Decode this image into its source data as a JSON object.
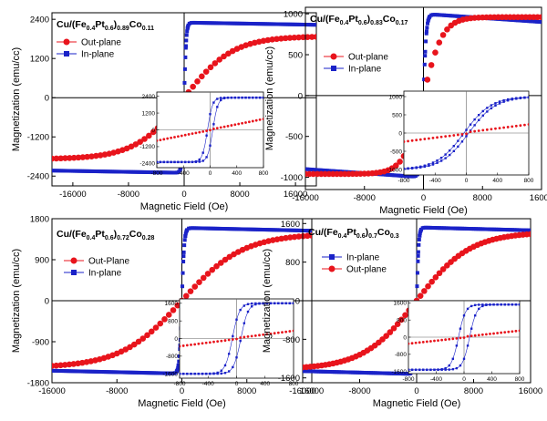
{
  "colors": {
    "out_plane": "#e8141c",
    "in_plane": "#1a22c8",
    "axis": "#000000"
  },
  "chart_data": [
    {
      "type": "scatter",
      "title_parts": {
        "main": "Cu/(Fe",
        "s1": "0.4",
        "m1": "Pt",
        "s2": "0.6",
        "m2": ")",
        "s3": "0.89",
        "m3": "Co",
        "s4": "0.11"
      },
      "xlabel": "Magnetic Field (Oe)",
      "ylabel": "Magnetization (emu/cc)",
      "xlim": [
        -19000,
        19000
      ],
      "ylim": [
        -2700,
        2600
      ],
      "xticks": [
        "-16000",
        "-8000",
        "0",
        "8000",
        "16000"
      ],
      "xtick_values": [
        -16000,
        -8000,
        0,
        8000,
        16000
      ],
      "yticks": [
        "-2400",
        "-1200",
        "0",
        "1200",
        "2400"
      ],
      "ytick_values": [
        -2400,
        -1200,
        0,
        1200,
        2400
      ],
      "legend": [
        "Out-plane",
        "In-plane"
      ],
      "legend_order": [
        "out",
        "in"
      ],
      "ms_in": 2300,
      "ms_out": 1880,
      "hk_out": 7000,
      "sat_in": 300,
      "tilt_in": 0.03,
      "coercivity": 0,
      "inset": {
        "xlim": [
          -800,
          800
        ],
        "ylim": [
          -2700,
          2700
        ],
        "xticks": [
          "-800",
          "-400",
          "0",
          "400",
          "800"
        ],
        "xtick_values": [
          -800,
          -400,
          0,
          400,
          800
        ],
        "yticks": [
          "-2400",
          "-1200",
          "0",
          "1200",
          "2400"
        ],
        "ytick_values": [
          -2400,
          -1200,
          0,
          1200,
          2400
        ],
        "hc_in": 40,
        "sat_in": 150,
        "slope_out": 0.8
      }
    },
    {
      "type": "scatter",
      "title_parts": {
        "main": "Cu/(Fe",
        "s1": "0.4",
        "m1": "Pt",
        "s2": "0.6",
        "m2": ")",
        "s3": "0.83",
        "m3": "Co",
        "s4": "0.17"
      },
      "xlabel": "Magnetic Field (Oe)",
      "ylabel": "Magnetization (emu/cc)",
      "xlim": [
        -16000,
        16000
      ],
      "ylim": [
        -1150,
        1080
      ],
      "xticks": [
        "-16000",
        "-8000",
        "0",
        "8000",
        "16000"
      ],
      "xtick_values": [
        -16000,
        -8000,
        0,
        8000,
        16000
      ],
      "yticks": [
        "-1000",
        "-500",
        "0",
        "500",
        "1000"
      ],
      "ytick_values": [
        -1000,
        -500,
        0,
        500,
        1000
      ],
      "legend": [
        "Out-plane",
        "In-plane"
      ],
      "legend_order": [
        "out",
        "in"
      ],
      "ms_in": 1000,
      "ms_out": 960,
      "hk_out": 2600,
      "sat_in": 400,
      "tilt_in": 0.1,
      "coercivity": 0,
      "inset": {
        "xlim": [
          -800,
          800
        ],
        "ylim": [
          -1150,
          1150
        ],
        "xticks": [
          "-800",
          "-400",
          "0",
          "400",
          "800"
        ],
        "xtick_values": [
          -800,
          -400,
          0,
          400,
          800
        ],
        "yticks": [
          "-1000",
          "-500",
          "0",
          "500",
          "1000"
        ],
        "ytick_values": [
          -1000,
          -500,
          0,
          500,
          1000
        ],
        "hc_in": 30,
        "sat_in": 700,
        "slope_out": 0.45
      }
    },
    {
      "type": "scatter",
      "title_parts": {
        "main": "Cu/(Fe",
        "s1": "0.4",
        "m1": "Pt",
        "s2": "0.6",
        "m2": ")",
        "s3": "0.72",
        "m3": "Co",
        "s4": "0.28"
      },
      "xlabel": "Magnetic Field (Oe)",
      "ylabel": "Magnetization (emu/cc)",
      "xlim": [
        -16000,
        16000
      ],
      "ylim": [
        -1800,
        1800
      ],
      "xticks": [
        "-16000",
        "-8000",
        "0",
        "8000",
        "16000"
      ],
      "xtick_values": [
        -16000,
        -8000,
        0,
        8000,
        16000
      ],
      "yticks": [
        "-1800",
        "-900",
        "0",
        "900",
        "1800"
      ],
      "ytick_values": [
        -1800,
        -900,
        0,
        900,
        1800
      ],
      "legend": [
        "Out-Plane",
        "In-plane"
      ],
      "legend_order": [
        "out",
        "in"
      ],
      "ms_in": 1600,
      "ms_out": 1470,
      "hk_out": 7500,
      "sat_in": 300,
      "tilt_in": 0.04,
      "coercivity": 0,
      "inset": {
        "xlim": [
          -800,
          800
        ],
        "ylim": [
          -1800,
          1800
        ],
        "xticks": [
          "-800",
          "-400",
          "0",
          "400",
          "800"
        ],
        "xtick_values": [
          -800,
          -400,
          0,
          400,
          800
        ],
        "yticks": [
          "-1600",
          "-800",
          "0",
          "800",
          "1600"
        ],
        "ytick_values": [
          -1600,
          -800,
          0,
          800,
          1600
        ],
        "hc_in": 60,
        "sat_in": 200,
        "slope_out": 0.45
      }
    },
    {
      "type": "scatter",
      "title_parts": {
        "main": "Cu/(Fe",
        "s1": "0.4",
        "m1": "Pt",
        "s2": "0.6",
        "m2": ")",
        "s3": "0.7",
        "m3": "Co",
        "s4": "0.3"
      },
      "xlabel": "Magnetic Field (Oe)",
      "ylabel": "Magnetization (emu/cc)",
      "xlim": [
        -16000,
        16000
      ],
      "ylim": [
        -1700,
        1700
      ],
      "xticks": [
        "-16000",
        "-8000",
        "0",
        "8000",
        "16000"
      ],
      "xtick_values": [
        -16000,
        -8000,
        0,
        8000,
        16000
      ],
      "yticks": [
        "-1600",
        "-800",
        "0",
        "800",
        "1600"
      ],
      "ytick_values": [
        -1600,
        -800,
        0,
        800,
        1600
      ],
      "legend": [
        "In-plane",
        "Out-plane"
      ],
      "legend_order": [
        "in",
        "out"
      ],
      "ms_in": 1520,
      "ms_out": 1420,
      "hk_out": 7500,
      "sat_in": 300,
      "tilt_in": 0.04,
      "coercivity": 0,
      "inset": {
        "xlim": [
          -800,
          800
        ],
        "ylim": [
          -1700,
          1700
        ],
        "xticks": [
          "-800",
          "-400",
          "0",
          "400",
          "800"
        ],
        "xtick_values": [
          -800,
          -400,
          0,
          400,
          800
        ],
        "yticks": [
          "-1600",
          "-800",
          "0",
          "800",
          "1600"
        ],
        "ytick_values": [
          -1600,
          -800,
          0,
          800,
          1600
        ],
        "hc_in": 80,
        "sat_in": 200,
        "slope_out": 0.4
      }
    }
  ]
}
